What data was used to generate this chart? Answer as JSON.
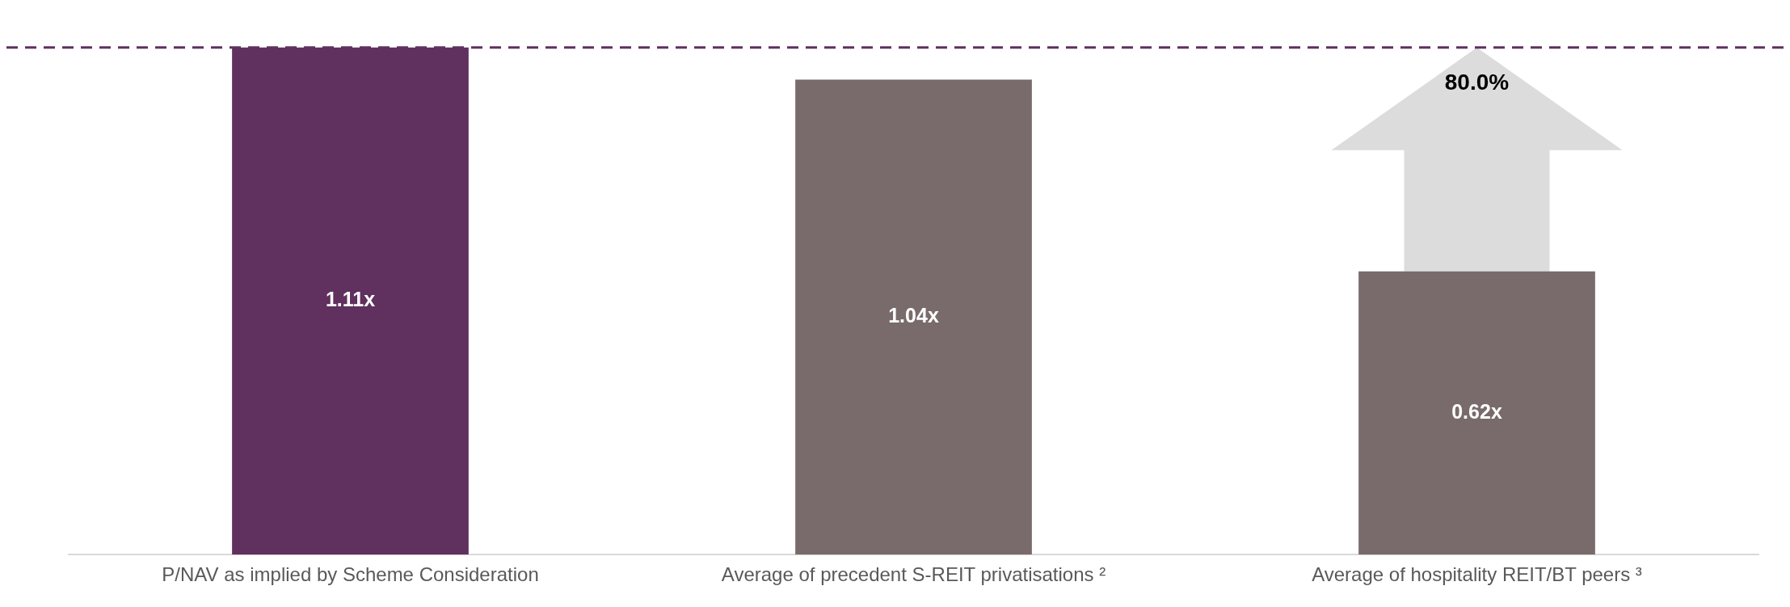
{
  "chart_data": {
    "type": "bar",
    "categories": [
      "P/NAV as implied by Scheme Consideration",
      "Average of precedent S-REIT privatisations ²",
      "Average of hospitality REIT/BT peers ³"
    ],
    "values": [
      1.11,
      1.04,
      0.62
    ],
    "colors": [
      "#60305e",
      "#796b6b",
      "#796b6b"
    ],
    "value_labels": [
      "1.11x",
      "1.04x",
      "0.62x"
    ],
    "tick_labels": "x",
    "grid": false,
    "legend": false,
    "ref_lines": [
      {
        "axis": "y",
        "value": 1.11,
        "color": "#60305e",
        "line_style": "dashed"
      }
    ],
    "annotations": [
      "80.0%"
    ]
  }
}
